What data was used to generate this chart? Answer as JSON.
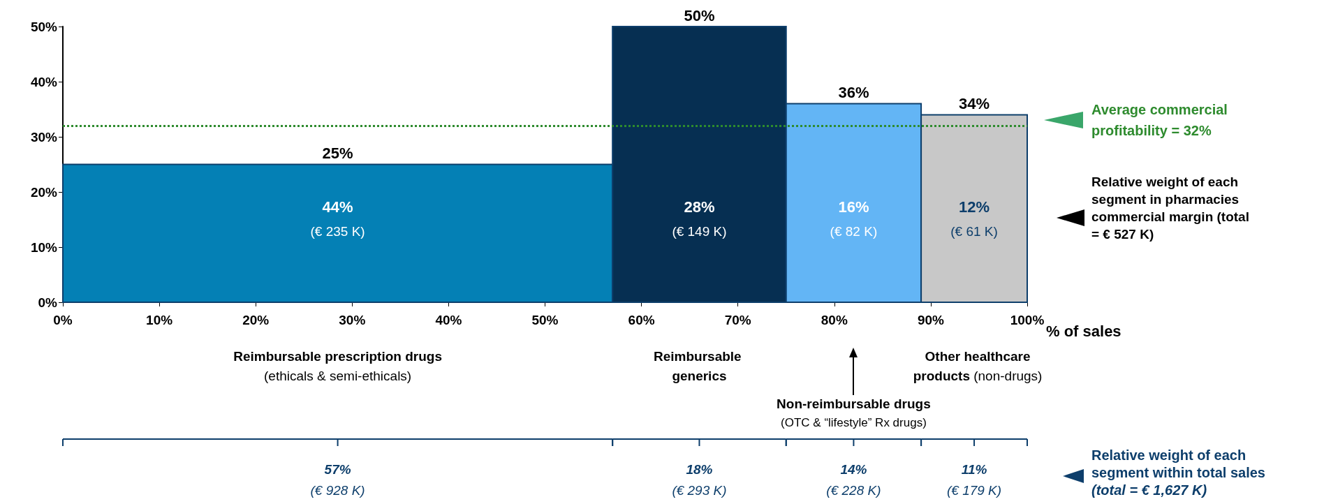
{
  "chart_data": {
    "type": "histogram",
    "xlabel": "% of sales",
    "bins": [
      0,
      57,
      75,
      89,
      100
    ],
    "values": [
      25,
      50,
      36,
      34
    ],
    "value_labels": [
      "25%",
      "50%",
      "36%",
      "34%"
    ],
    "colors": [
      "#0480b5",
      "#062f52",
      "#63b5f5",
      "#c8c8c8"
    ],
    "xlim": [
      0,
      100
    ],
    "xticks": [
      {
        "value": 0,
        "label": "0%"
      },
      {
        "value": 10,
        "label": "10%"
      },
      {
        "value": 20,
        "label": "20%"
      },
      {
        "value": 30,
        "label": "30%"
      },
      {
        "value": 40,
        "label": "40%"
      },
      {
        "value": 50,
        "label": "50%"
      },
      {
        "value": 60,
        "label": "60%"
      },
      {
        "value": 70,
        "label": "70%"
      },
      {
        "value": 80,
        "label": "80%"
      },
      {
        "value": 90,
        "label": "90%"
      },
      {
        "value": 100,
        "label": "100%"
      }
    ],
    "ylim": [
      0,
      50
    ],
    "yticks": [
      {
        "value": 0,
        "label": "0%"
      },
      {
        "value": 10,
        "label": "10%"
      },
      {
        "value": 20,
        "label": "20%"
      },
      {
        "value": 30,
        "label": "30%"
      },
      {
        "value": 40,
        "label": "40%"
      },
      {
        "value": 50,
        "label": "50%"
      }
    ],
    "grid": false,
    "ref_lines": [
      {
        "axis": "y",
        "value": 32,
        "label": "Average commercial profitability = 32%",
        "color": "#2e8b2e",
        "line_style": "dotted"
      }
    ],
    "annotations": [
      "44%",
      "(€ 235 K)",
      "28%",
      "(€ 149 K)",
      "16%",
      "(€ 82 K)",
      "12%",
      "(€ 61 K)",
      "Reimbursable prescription drugs",
      "(ethicals & semi-ethicals)",
      "Reimbursable generics",
      "Other healthcare",
      "products",
      "(non-drugs)",
      "Non-reimbursable drugs",
      "(OTC & “lifestyle” Rx drugs)",
      "57%",
      "(€ 928 K)",
      "18%",
      "(€ 293 K)",
      "14%",
      "(€ 228 K)",
      "11%",
      "(€ 179 K)",
      "Relative weight of each segment in pharmacies commercial margin (total = € 527 K)",
      "Relative weight of each segment within total sales",
      "(total = € 1,627 K)"
    ]
  }
}
